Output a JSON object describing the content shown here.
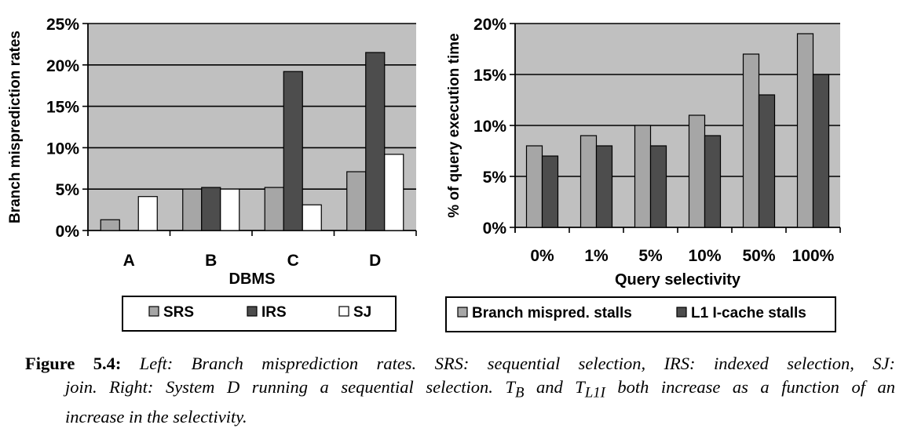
{
  "chart_data": [
    {
      "type": "bar",
      "categories": [
        "A",
        "B",
        "C",
        "D"
      ],
      "series": [
        {
          "name": "SRS",
          "values": [
            1.3,
            5.0,
            5.2,
            7.1
          ],
          "color": "#a6a6a6"
        },
        {
          "name": "IRS",
          "values": [
            0,
            5.2,
            19.2,
            21.5
          ],
          "color": "#4d4d4d"
        },
        {
          "name": "SJ",
          "values": [
            4.1,
            5.0,
            3.1,
            9.2
          ],
          "color": "#ffffff"
        }
      ],
      "xlabel": "DBMS",
      "ylabel": "Branch misprediction rates",
      "ylim": [
        0,
        25
      ],
      "yticks": [
        "0%",
        "5%",
        "10%",
        "15%",
        "20%",
        "25%"
      ],
      "grid": true,
      "legend_position": "bottom"
    },
    {
      "type": "bar",
      "categories": [
        "0%",
        "1%",
        "5%",
        "10%",
        "50%",
        "100%"
      ],
      "series": [
        {
          "name": "Branch mispred. stalls",
          "values": [
            8,
            9,
            10,
            11,
            17,
            19
          ],
          "color": "#a6a6a6"
        },
        {
          "name": "L1 I-cache stalls",
          "values": [
            7,
            8,
            8,
            9,
            13,
            15
          ],
          "color": "#4d4d4d"
        }
      ],
      "xlabel": "Query selectivity",
      "ylabel": "% of query execution time",
      "ylim": [
        0,
        20
      ],
      "yticks": [
        "0%",
        "5%",
        "10%",
        "15%",
        "20%"
      ],
      "grid": true,
      "legend_position": "bottom"
    }
  ],
  "caption": {
    "label": "Figure 5.4:",
    "line1": "Left: Branch misprediction rates. SRS: sequential selection, IRS: indexed selection, SJ:",
    "line2_pre": "join. Right: System D running a sequential selection. T",
    "sub_b": "B",
    "line2_mid": " and T",
    "sub_l1i": "L1I",
    "line2_post": " both increase as a function of an",
    "line3": "increase in the selectivity."
  }
}
